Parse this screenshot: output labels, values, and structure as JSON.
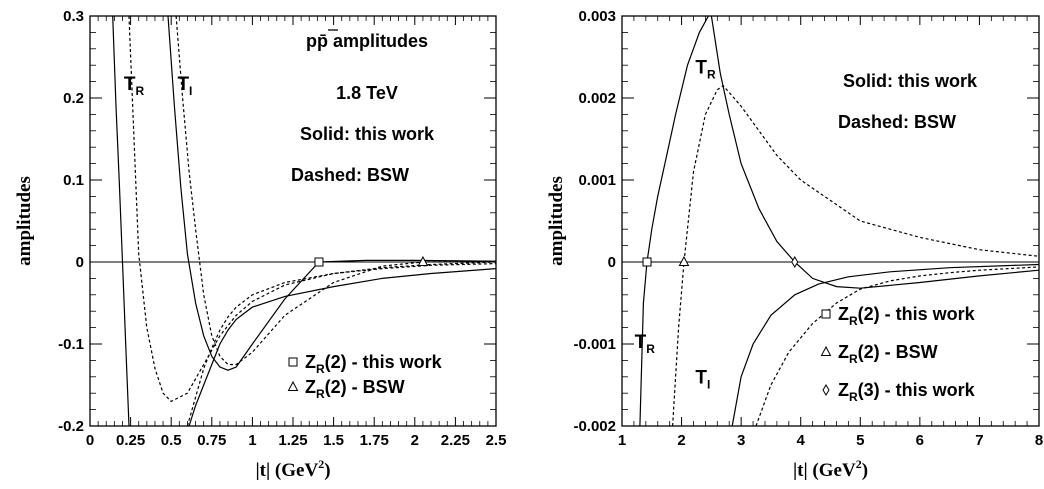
{
  "chart_data": [
    {
      "type": "line",
      "xlabel": "|t| (GeV²)",
      "xlabel_main": "|t| (GeV",
      "xlabel_sup": "2",
      "xlabel_close": ")",
      "ylabel": "amplitudes",
      "xlim": [
        0,
        2.5
      ],
      "ylim": [
        -0.2,
        0.3
      ],
      "x_ticks": [
        0,
        0.25,
        0.5,
        0.75,
        1,
        1.25,
        1.5,
        1.75,
        2,
        2.25,
        2.5
      ],
      "x_tick_labels": [
        "0",
        "0.25",
        "0.5",
        "0.75",
        "1",
        "1.25",
        "1.5",
        "1.75",
        "2",
        "2.25",
        "2.5"
      ],
      "y_ticks": [
        -0.2,
        -0.1,
        0,
        0.1,
        0.2,
        0.3
      ],
      "y_tick_labels": [
        "-0.2",
        "-0.1",
        "0",
        "0.1",
        "0.2",
        "0.3"
      ],
      "annotations": {
        "title": "pp̄   amplitudes",
        "energy": "1.8 TeV",
        "solid": "Solid: this work",
        "dashed": "Dashed: BSW"
      },
      "curve_labels": [
        {
          "main": "T",
          "sub": "R",
          "x": 0.27,
          "y": 0.21
        },
        {
          "main": "T",
          "sub": "I",
          "x": 0.6,
          "y": 0.21
        }
      ],
      "series": [
        {
          "style": "solid",
          "x": [
            0.14,
            0.16,
            0.18,
            0.2,
            0.22,
            0.24
          ],
          "y": [
            0.3,
            0.19,
            0.1,
            0.0,
            -0.1,
            -0.2
          ]
        },
        {
          "style": "dashed",
          "x": [
            0.24,
            0.3,
            0.35,
            0.4,
            0.45,
            0.5,
            0.6,
            0.7,
            0.8,
            0.9,
            1.0,
            1.2,
            1.5,
            1.8,
            2.1,
            2.5
          ],
          "y": [
            0.3,
            0.01,
            -0.08,
            -0.13,
            -0.16,
            -0.17,
            -0.16,
            -0.125,
            -0.09,
            -0.065,
            -0.048,
            -0.028,
            -0.014,
            -0.007,
            -0.003,
            0.0
          ]
        },
        {
          "style": "solid",
          "x": [
            0.48,
            0.52,
            0.56,
            0.6,
            0.65,
            0.7,
            0.75,
            0.8,
            0.85,
            0.9,
            1.0,
            1.2,
            1.41,
            1.7,
            2.0,
            2.5
          ],
          "y": [
            0.3,
            0.19,
            0.09,
            0.01,
            -0.05,
            -0.09,
            -0.115,
            -0.128,
            -0.132,
            -0.128,
            -0.1,
            -0.045,
            0.0,
            0.002,
            0.002,
            0.001
          ]
        },
        {
          "style": "dashed",
          "x": [
            0.53,
            0.57,
            0.61,
            0.65,
            0.7,
            0.75,
            0.8,
            0.85,
            0.9,
            1.0,
            1.2,
            1.5,
            1.8,
            2.05,
            2.5
          ],
          "y": [
            0.3,
            0.2,
            0.11,
            0.04,
            -0.04,
            -0.09,
            -0.115,
            -0.125,
            -0.125,
            -0.11,
            -0.065,
            -0.025,
            -0.005,
            0.0,
            0.001
          ]
        },
        {
          "style": "solid",
          "x": [
            0.61,
            0.65,
            0.7,
            0.75,
            0.8,
            0.85,
            0.9,
            1.0,
            1.2,
            1.5,
            1.8,
            2.1,
            2.5
          ],
          "y": [
            -0.2,
            -0.175,
            -0.15,
            -0.125,
            -0.1,
            -0.083,
            -0.07,
            -0.055,
            -0.042,
            -0.03,
            -0.02,
            -0.014,
            -0.008
          ]
        },
        {
          "style": "dashed",
          "x": [
            0.6,
            0.7,
            0.75,
            0.8,
            0.85,
            0.9,
            1.0,
            1.2,
            1.5,
            1.8,
            2.1,
            2.5
          ],
          "y": [
            -0.2,
            -0.13,
            -0.105,
            -0.083,
            -0.067,
            -0.055,
            -0.04,
            -0.025,
            -0.014,
            -0.008,
            -0.004,
            -0.002
          ]
        }
      ],
      "markers": [
        {
          "x": 1.41,
          "y": 0.0,
          "shape": "square"
        },
        {
          "x": 2.05,
          "y": 0.0,
          "shape": "triangle"
        }
      ],
      "legend": {
        "position": "bottom-right",
        "entries": [
          {
            "shape": "square",
            "main": "Z",
            "sub": "R",
            "arg": "(2)",
            "text": "-  this work"
          },
          {
            "shape": "triangle",
            "main": "Z",
            "sub": "R",
            "arg": "(2)",
            "text": "-  BSW"
          }
        ]
      }
    },
    {
      "type": "line",
      "xlabel": "|t| (GeV²)",
      "xlabel_main": "|t| (GeV",
      "xlabel_sup": "2",
      "xlabel_close": ")",
      "ylabel": "amplitudes",
      "xlim": [
        1,
        8
      ],
      "ylim": [
        -0.002,
        0.003
      ],
      "x_ticks": [
        1,
        2,
        3,
        4,
        5,
        6,
        7,
        8
      ],
      "x_tick_labels": [
        "1",
        "2",
        "3",
        "4",
        "5",
        "6",
        "7",
        "8"
      ],
      "y_ticks": [
        -0.002,
        -0.001,
        0,
        0.001,
        0.002,
        0.003
      ],
      "y_tick_labels": [
        "-0.002",
        "-0.001",
        "0",
        "0.001",
        "0.002",
        "0.003"
      ],
      "annotations": {
        "solid": "Solid: this work",
        "dashed": "Dashed: BSW"
      },
      "curve_labels": [
        {
          "main": "T",
          "sub": "R",
          "x": 2.4,
          "y": 0.0023
        },
        {
          "main": "T",
          "sub": "R",
          "x": 1.38,
          "y": -0.00105
        },
        {
          "main": "T",
          "sub": "I",
          "x": 2.4,
          "y": -0.00148
        }
      ],
      "series": [
        {
          "style": "solid",
          "x": [
            1.3,
            1.36,
            1.42,
            1.5,
            1.6,
            1.75,
            1.9,
            2.1,
            2.3,
            2.45
          ],
          "y": [
            -0.002,
            -0.0005,
            0.0,
            0.0004,
            0.0008,
            0.0013,
            0.0018,
            0.0024,
            0.0028,
            0.003
          ]
        },
        {
          "style": "solid",
          "x": [
            2.5,
            2.65,
            2.8,
            3.0,
            3.3,
            3.6,
            3.9,
            4.2,
            4.6,
            5.0,
            6.0,
            7.0,
            8.0
          ],
          "y": [
            0.003,
            0.0023,
            0.0018,
            0.0012,
            0.00065,
            0.00025,
            0.0,
            -0.0002,
            -0.0003,
            -0.00032,
            -0.00025,
            -0.00017,
            -0.0001
          ]
        },
        {
          "style": "solid",
          "x": [
            2.85,
            3.0,
            3.2,
            3.5,
            3.9,
            4.3,
            4.8,
            5.5,
            6.5,
            8.0
          ],
          "y": [
            -0.002,
            -0.0014,
            -0.001,
            -0.00065,
            -0.0004,
            -0.00027,
            -0.00018,
            -0.00012,
            -7e-05,
            -3e-05
          ]
        },
        {
          "style": "dashed",
          "x": [
            1.85,
            1.95,
            2.04,
            2.2,
            2.4,
            2.6,
            2.7,
            3.0,
            3.3,
            3.6,
            4.0,
            4.5,
            5.0,
            6.0,
            7.0,
            8.0
          ],
          "y": [
            -0.002,
            -0.0008,
            0.0,
            0.0011,
            0.0018,
            0.0021,
            0.00215,
            0.0019,
            0.0016,
            0.0013,
            0.001,
            0.00075,
            0.0005,
            0.0003,
            0.00015,
            7e-05
          ]
        },
        {
          "style": "dashed",
          "x": [
            3.25,
            3.5,
            3.8,
            4.2,
            4.6,
            5.0,
            5.5,
            6.0,
            6.5,
            7.0,
            7.5,
            8.0
          ],
          "y": [
            -0.002,
            -0.0015,
            -0.0011,
            -0.00075,
            -0.0005,
            -0.00033,
            -0.00023,
            -0.00017,
            -0.00013,
            -0.0001,
            -8e-05,
            -6e-05
          ]
        }
      ],
      "markers": [
        {
          "x": 1.42,
          "y": 0.0,
          "shape": "square"
        },
        {
          "x": 2.04,
          "y": 0.0,
          "shape": "triangle"
        },
        {
          "x": 3.9,
          "y": 0.0,
          "shape": "diamond"
        }
      ],
      "legend": {
        "position": "bottom-right",
        "entries": [
          {
            "shape": "square",
            "main": "Z",
            "sub": "R",
            "arg": "(2)",
            "text": "-  this work"
          },
          {
            "shape": "triangle",
            "main": "Z",
            "sub": "R",
            "arg": "(2)",
            "text": "-  BSW"
          },
          {
            "shape": "diamond",
            "main": "Z",
            "sub": "R",
            "arg": "(3)",
            "text": "-  this work"
          }
        ]
      }
    }
  ]
}
